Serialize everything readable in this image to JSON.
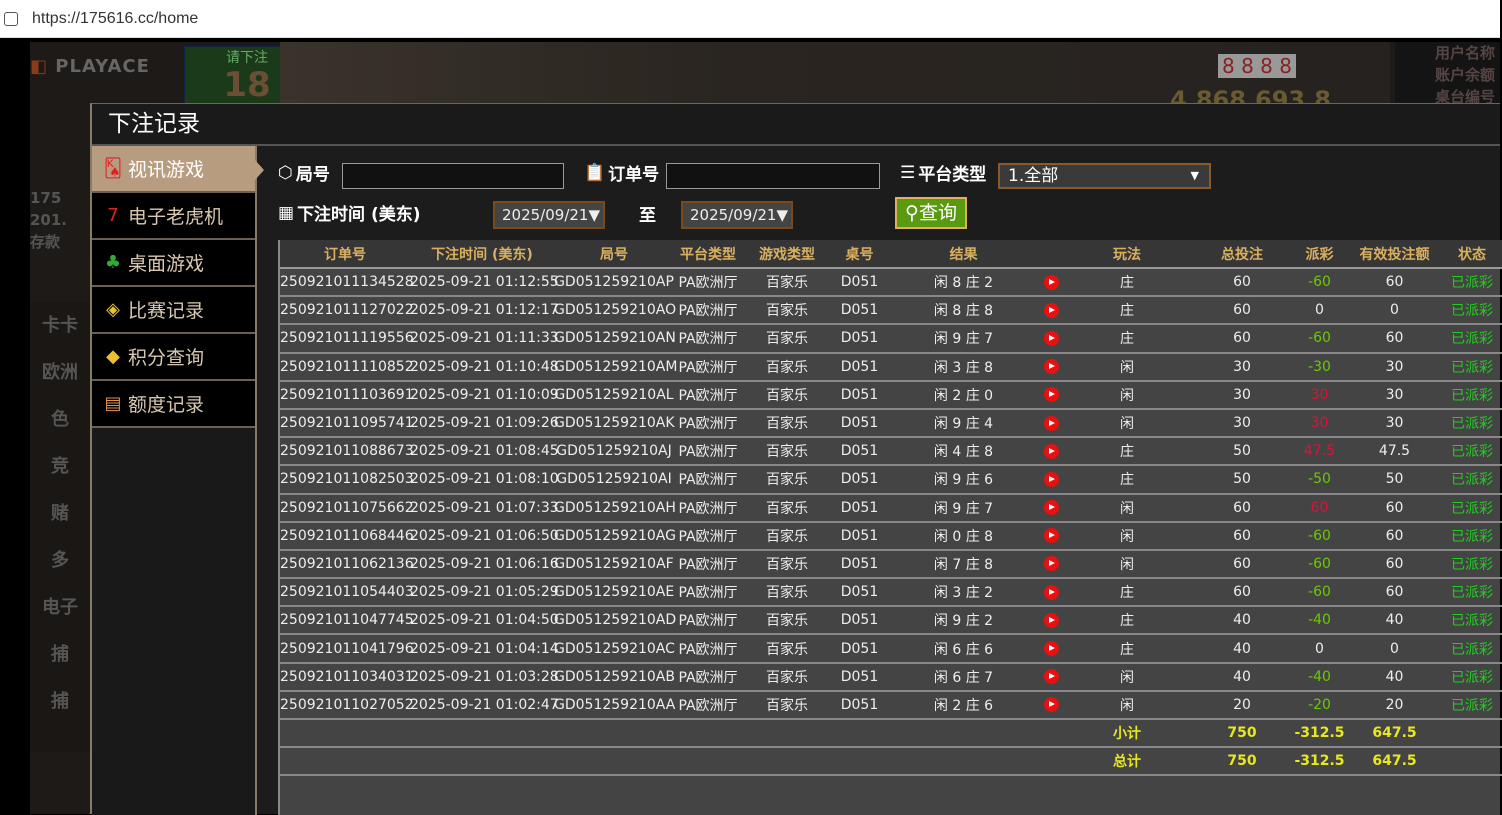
{
  "browser": {
    "url": "https://175616.cc/home"
  },
  "background": {
    "logo": "PLAYACE",
    "bet_prompt": "请下注",
    "countdown": "18",
    "jackpot": "4,868,693.8",
    "cards": "8 8 8 8",
    "info": [
      "用户名称",
      "账户余额",
      "桌台编号"
    ],
    "stats": [
      "175",
      "201.",
      "存款"
    ],
    "side": [
      "卡卡",
      "欧洲",
      "色",
      "竞",
      "赌",
      "多",
      "电子",
      "捕",
      "捕"
    ]
  },
  "modal": {
    "title": "下注记录",
    "nav": [
      {
        "label": "视讯游戏",
        "icon": "playing-cards-icon",
        "active": true
      },
      {
        "label": "电子老虎机",
        "icon": "slot-777-icon"
      },
      {
        "label": "桌面游戏",
        "icon": "table-game-icon"
      },
      {
        "label": "比赛记录",
        "icon": "ticket-icon"
      },
      {
        "label": "积分查询",
        "icon": "diamond-icon"
      },
      {
        "label": "额度记录",
        "icon": "document-icon"
      }
    ],
    "filters": {
      "round_label": "局号",
      "round_value": "",
      "order_label": "订单号",
      "order_value": "",
      "platform_label": "平台类型",
      "platform_value": "1.全部",
      "time_label": "下注时间 (美东)",
      "date_from": "2025/09/21▼",
      "to_label": "至",
      "date_to": "2025/09/21▼",
      "query_label": "查询"
    },
    "colors": {
      "accent": "#d8b060",
      "positive_payout": "#e0103a",
      "negative_payout": "#66cc00",
      "status": "#22cc22",
      "totals": "#e8e820",
      "query_button": "#5a9a10"
    },
    "table": {
      "columns": [
        "订单号",
        "下注时间 (美东)",
        "局号",
        "平台类型",
        "游戏类型",
        "桌号",
        "结果",
        "",
        "玩法",
        "总投注",
        "派彩",
        "有效投注额",
        "状态"
      ],
      "rows": [
        [
          "250921011134528",
          "2025-09-21 01:12:55",
          "GD051259210AP",
          "PA欧洲厅",
          "百家乐",
          "D051",
          "闲 8 庄 2",
          "庄",
          "60",
          "-60",
          "60",
          "已派彩"
        ],
        [
          "250921011127022",
          "2025-09-21 01:12:17",
          "GD051259210AO",
          "PA欧洲厅",
          "百家乐",
          "D051",
          "闲 8 庄 8",
          "庄",
          "60",
          "0",
          "0",
          "已派彩"
        ],
        [
          "250921011119556",
          "2025-09-21 01:11:33",
          "GD051259210AN",
          "PA欧洲厅",
          "百家乐",
          "D051",
          "闲 9 庄 7",
          "庄",
          "60",
          "-60",
          "60",
          "已派彩"
        ],
        [
          "250921011110852",
          "2025-09-21 01:10:48",
          "GD051259210AM",
          "PA欧洲厅",
          "百家乐",
          "D051",
          "闲 3 庄 8",
          "闲",
          "30",
          "-30",
          "30",
          "已派彩"
        ],
        [
          "250921011103691",
          "2025-09-21 01:10:09",
          "GD051259210AL",
          "PA欧洲厅",
          "百家乐",
          "D051",
          "闲 2 庄 0",
          "闲",
          "30",
          "30",
          "30",
          "已派彩"
        ],
        [
          "250921011095741",
          "2025-09-21 01:09:26",
          "GD051259210AK",
          "PA欧洲厅",
          "百家乐",
          "D051",
          "闲 9 庄 4",
          "闲",
          "30",
          "30",
          "30",
          "已派彩"
        ],
        [
          "250921011088673",
          "2025-09-21 01:08:45",
          "GD051259210AJ",
          "PA欧洲厅",
          "百家乐",
          "D051",
          "闲 4 庄 8",
          "庄",
          "50",
          "47.5",
          "47.5",
          "已派彩"
        ],
        [
          "250921011082503",
          "2025-09-21 01:08:10",
          "GD051259210AI",
          "PA欧洲厅",
          "百家乐",
          "D051",
          "闲 9 庄 6",
          "庄",
          "50",
          "-50",
          "50",
          "已派彩"
        ],
        [
          "250921011075662",
          "2025-09-21 01:07:33",
          "GD051259210AH",
          "PA欧洲厅",
          "百家乐",
          "D051",
          "闲 9 庄 7",
          "闲",
          "60",
          "60",
          "60",
          "已派彩"
        ],
        [
          "250921011068446",
          "2025-09-21 01:06:50",
          "GD051259210AG",
          "PA欧洲厅",
          "百家乐",
          "D051",
          "闲 0 庄 8",
          "闲",
          "60",
          "-60",
          "60",
          "已派彩"
        ],
        [
          "250921011062136",
          "2025-09-21 01:06:16",
          "GD051259210AF",
          "PA欧洲厅",
          "百家乐",
          "D051",
          "闲 7 庄 8",
          "闲",
          "60",
          "-60",
          "60",
          "已派彩"
        ],
        [
          "250921011054403",
          "2025-09-21 01:05:29",
          "GD051259210AE",
          "PA欧洲厅",
          "百家乐",
          "D051",
          "闲 3 庄 2",
          "庄",
          "60",
          "-60",
          "60",
          "已派彩"
        ],
        [
          "250921011047745",
          "2025-09-21 01:04:50",
          "GD051259210AD",
          "PA欧洲厅",
          "百家乐",
          "D051",
          "闲 9 庄 2",
          "庄",
          "40",
          "-40",
          "40",
          "已派彩"
        ],
        [
          "250921011041796",
          "2025-09-21 01:04:14",
          "GD051259210AC",
          "PA欧洲厅",
          "百家乐",
          "D051",
          "闲 6 庄 6",
          "庄",
          "40",
          "0",
          "0",
          "已派彩"
        ],
        [
          "250921011034031",
          "2025-09-21 01:03:28",
          "GD051259210AB",
          "PA欧洲厅",
          "百家乐",
          "D051",
          "闲 6 庄 7",
          "闲",
          "40",
          "-40",
          "40",
          "已派彩"
        ],
        [
          "250921011027052",
          "2025-09-21 01:02:47",
          "GD051259210AA",
          "PA欧洲厅",
          "百家乐",
          "D051",
          "闲 2 庄 6",
          "闲",
          "20",
          "-20",
          "20",
          "已派彩"
        ]
      ],
      "subtotal": {
        "label": "小计",
        "total_bet": "750",
        "payout": "-312.5",
        "valid_bet": "647.5"
      },
      "total": {
        "label": "总计",
        "total_bet": "750",
        "payout": "-312.5",
        "valid_bet": "647.5"
      }
    }
  }
}
